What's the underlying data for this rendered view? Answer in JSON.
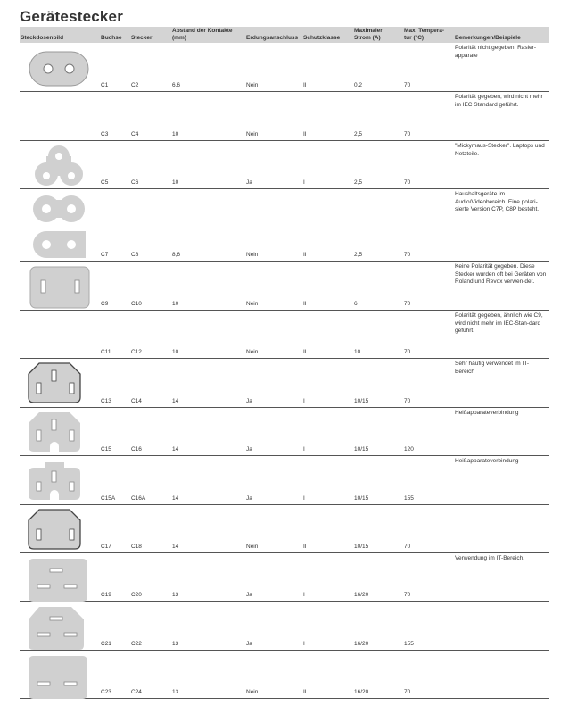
{
  "title": "Gerätestecker",
  "headers": {
    "bild": "Steckdosenbild",
    "buchse": "Buchse",
    "stecker": "Stecker",
    "abstand": "Abstand der Kontakte (mm)",
    "erdung": "Erdungsanschluss",
    "schutz": "Schutzklasse",
    "strom": "Maximaler Strom (A)",
    "temp": "Max. Tempera-tur (°C)",
    "bemerkungen": "Bemerkungen/Beispiele"
  },
  "rows": [
    {
      "icon": "c1-oval-two-hole-icon",
      "buchse": "C1",
      "stecker": "C2",
      "abstand": "6,6",
      "erdung": "Nein",
      "schutz": "II",
      "strom": "0,2",
      "temp": "70",
      "bemerkung": "Polarität nicht gegeben. Rasier-apparate"
    },
    {
      "icon": "",
      "buchse": "C3",
      "stecker": "C4",
      "abstand": "10",
      "erdung": "Nein",
      "schutz": "II",
      "strom": "2,5",
      "temp": "70",
      "bemerkung": "Polarität gegeben, wird nicht mehr im IEC Standard geführt."
    },
    {
      "icon": "c5-cloverleaf-icon",
      "buchse": "C5",
      "stecker": "C6",
      "abstand": "10",
      "erdung": "Ja",
      "schutz": "I",
      "strom": "2,5",
      "temp": "70",
      "bemerkung": "\"Mickymaus-Stecker\". Laptops und Netzteile."
    },
    {
      "icon": "c7-figure-eight-icon",
      "buchse": "C7",
      "stecker": "C8",
      "abstand": "8,6",
      "erdung": "Nein",
      "schutz": "II",
      "strom": "2,5",
      "temp": "70",
      "bemerkung": "Haushaltsgeräte im Audio/Videobereich. Eine polari-sierte Version C7P, C8P besteht."
    },
    {
      "icon": "c9-two-slot-icon",
      "buchse": "C9",
      "stecker": "C10",
      "abstand": "10",
      "erdung": "Nein",
      "schutz": "II",
      "strom": "6",
      "temp": "70",
      "bemerkung": "Keine Polarität gegeben. Diese Stecker wurden oft bei Geräten von Roland und Revox verwen-det."
    },
    {
      "icon": "",
      "buchse": "C11",
      "stecker": "C12",
      "abstand": "10",
      "erdung": "Nein",
      "schutz": "II",
      "strom": "10",
      "temp": "70",
      "bemerkung": "Polarität gegeben, ähnlich wie C9, wird nicht mehr im IEC-Stan-dard geführt."
    },
    {
      "icon": "c13-three-pin-icon",
      "buchse": "C13",
      "stecker": "C14",
      "abstand": "14",
      "erdung": "Ja",
      "schutz": "I",
      "strom": "10/15",
      "temp": "70",
      "bemerkung": "Sehr häufig verwendet im IT-Bereich"
    },
    {
      "icon": "c15-notched-icon",
      "buchse": "C15",
      "stecker": "C16",
      "abstand": "14",
      "erdung": "Ja",
      "schutz": "I",
      "strom": "10/15",
      "temp": "120",
      "bemerkung": "Heißapparateverbindung"
    },
    {
      "icon": "c15a-notched-bump-icon",
      "buchse": "C15A",
      "stecker": "C16A",
      "abstand": "14",
      "erdung": "Ja",
      "schutz": "I",
      "strom": "10/15",
      "temp": "155",
      "bemerkung": "Heißapparateverbindung"
    },
    {
      "icon": "c17-two-pin-icon",
      "buchse": "C17",
      "stecker": "C18",
      "abstand": "14",
      "erdung": "Nein",
      "schutz": "II",
      "strom": "10/15",
      "temp": "70",
      "bemerkung": ""
    },
    {
      "icon": "c19-three-slot-icon",
      "buchse": "C19",
      "stecker": "C20",
      "abstand": "13",
      "erdung": "Ja",
      "schutz": "I",
      "strom": "16/20",
      "temp": "70",
      "bemerkung": "Verwendung im IT-Bereich."
    },
    {
      "icon": "c21-chamfered-three-slot-icon",
      "buchse": "C21",
      "stecker": "C22",
      "abstand": "13",
      "erdung": "Ja",
      "schutz": "I",
      "strom": "16/20",
      "temp": "155",
      "bemerkung": ""
    },
    {
      "icon": "c23-two-slot-horizontal-icon",
      "buchse": "C23",
      "stecker": "C24",
      "abstand": "13",
      "erdung": "Nein",
      "schutz": "II",
      "strom": "16/20",
      "temp": "70",
      "bemerkung": ""
    }
  ]
}
